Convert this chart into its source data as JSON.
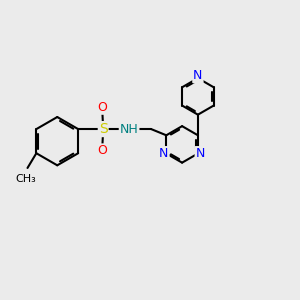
{
  "bg_color": "#ebebeb",
  "bond_color": "#000000",
  "bond_width": 1.5,
  "atom_colors": {
    "N": "#0000ff",
    "S": "#cccc00",
    "O": "#ff0000",
    "NH": "#008080",
    "C": "#000000"
  },
  "font_size": 9
}
